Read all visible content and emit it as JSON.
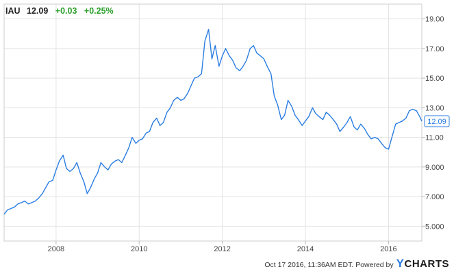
{
  "header": {
    "ticker": "IAU",
    "price": "12.09",
    "change": "+0.03",
    "change_pct": "+0.25%"
  },
  "footer": {
    "timestamp": "Oct 17 2016, 11:36AM EDT.",
    "powered_by": "Powered by",
    "logo_text": "CHARTS",
    "logo_mark": "Y"
  },
  "colors": {
    "line": "#2a7de1",
    "positive": "#2ea02e",
    "grid": "#e3e3e3",
    "axis_text": "#444444"
  },
  "chart_data": {
    "type": "line",
    "title": "",
    "xlabel": "",
    "ylabel": "",
    "xlim": [
      2006.75,
      2016.8
    ],
    "ylim": [
      4.0,
      20.0
    ],
    "x_ticks": [
      2008,
      2010,
      2012,
      2014,
      2016
    ],
    "x_tick_labels": [
      "2008",
      "2010",
      "2012",
      "2014",
      "2016"
    ],
    "y_ticks": [
      5,
      7,
      9,
      11,
      13,
      15,
      17,
      19
    ],
    "y_tick_labels": [
      "5.000",
      "7.000",
      "9.000",
      "11.00",
      "13.00",
      "15.00",
      "17.00",
      "19.00"
    ],
    "grid": true,
    "last_value_label": "12.09",
    "series": [
      {
        "x": [
          2006.75,
          2006.83,
          2006.92,
          2007.0,
          2007.08,
          2007.17,
          2007.25,
          2007.33,
          2007.42,
          2007.5,
          2007.58,
          2007.67,
          2007.75,
          2007.83,
          2007.92,
          2008.0,
          2008.08,
          2008.17,
          2008.25,
          2008.33,
          2008.42,
          2008.5,
          2008.58,
          2008.67,
          2008.75,
          2008.83,
          2008.92,
          2009.0,
          2009.08,
          2009.17,
          2009.25,
          2009.33,
          2009.42,
          2009.5,
          2009.58,
          2009.67,
          2009.75,
          2009.83,
          2009.92,
          2010.0,
          2010.08,
          2010.17,
          2010.25,
          2010.33,
          2010.42,
          2010.5,
          2010.58,
          2010.67,
          2010.75,
          2010.83,
          2010.92,
          2011.0,
          2011.08,
          2011.17,
          2011.25,
          2011.33,
          2011.42,
          2011.5,
          2011.58,
          2011.67,
          2011.75,
          2011.83,
          2011.92,
          2012.0,
          2012.08,
          2012.17,
          2012.25,
          2012.33,
          2012.42,
          2012.5,
          2012.58,
          2012.67,
          2012.75,
          2012.83,
          2012.92,
          2013.0,
          2013.08,
          2013.17,
          2013.25,
          2013.33,
          2013.42,
          2013.5,
          2013.58,
          2013.67,
          2013.75,
          2013.83,
          2013.92,
          2014.0,
          2014.08,
          2014.17,
          2014.25,
          2014.33,
          2014.42,
          2014.5,
          2014.58,
          2014.67,
          2014.75,
          2014.83,
          2014.92,
          2015.0,
          2015.08,
          2015.17,
          2015.25,
          2015.33,
          2015.42,
          2015.5,
          2015.58,
          2015.67,
          2015.75,
          2015.83,
          2015.92,
          2016.0,
          2016.08,
          2016.17,
          2016.25,
          2016.33,
          2016.42,
          2016.5,
          2016.58,
          2016.67,
          2016.75,
          2016.8
        ],
        "values": [
          5.8,
          6.1,
          6.2,
          6.3,
          6.5,
          6.6,
          6.7,
          6.5,
          6.6,
          6.7,
          6.9,
          7.2,
          7.6,
          8.0,
          8.1,
          8.8,
          9.4,
          9.8,
          8.9,
          8.7,
          8.9,
          9.3,
          8.6,
          8.0,
          7.2,
          7.6,
          8.2,
          8.6,
          9.3,
          9.0,
          8.8,
          9.2,
          9.4,
          9.5,
          9.3,
          9.8,
          10.3,
          11.0,
          10.6,
          10.8,
          10.9,
          11.3,
          11.4,
          12.0,
          12.3,
          11.8,
          12.0,
          12.7,
          13.0,
          13.5,
          13.7,
          13.5,
          13.6,
          14.0,
          14.5,
          15.0,
          15.1,
          15.3,
          17.5,
          18.3,
          16.3,
          17.2,
          15.8,
          16.5,
          17.0,
          16.5,
          16.2,
          15.7,
          15.5,
          15.8,
          16.2,
          17.0,
          17.2,
          16.7,
          16.5,
          16.3,
          15.8,
          15.3,
          13.8,
          13.2,
          12.2,
          12.5,
          13.5,
          13.1,
          12.5,
          12.2,
          11.8,
          12.1,
          12.4,
          13.0,
          12.6,
          12.4,
          12.2,
          12.7,
          12.5,
          12.2,
          11.9,
          11.4,
          11.7,
          12.0,
          12.4,
          11.7,
          11.5,
          11.9,
          11.6,
          11.2,
          10.9,
          11.0,
          10.9,
          10.6,
          10.3,
          10.2,
          11.0,
          11.9,
          12.0,
          12.1,
          12.3,
          12.8,
          12.9,
          12.8,
          12.4,
          12.09
        ]
      }
    ]
  }
}
